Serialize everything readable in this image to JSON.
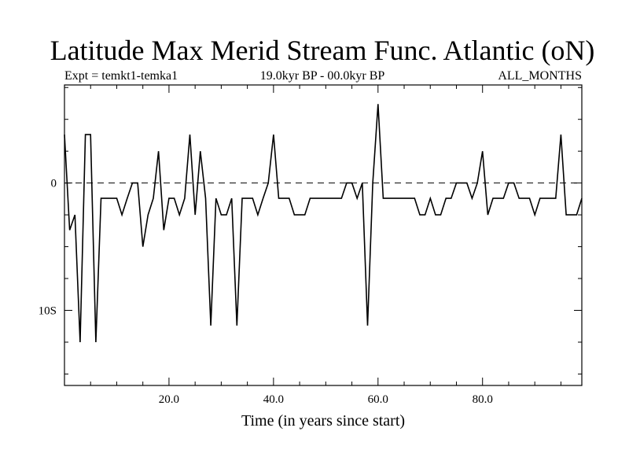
{
  "chart_data": {
    "type": "line",
    "title": "Latitude Max Merid Stream Func. Atlantic (oN)",
    "left_label": "Expt = temkt1-temka1",
    "center_label": "19.0kyr BP - 00.0kyr BP",
    "right_label": "ALL_MONTHS",
    "xlabel": "Time (in years since start)",
    "ylabel": "",
    "xlim": [
      0,
      99
    ],
    "ylim": [
      -15.9,
      7.7
    ],
    "x_ticks": [
      {
        "value": 20,
        "label": "20.0"
      },
      {
        "value": 40,
        "label": "40.0"
      },
      {
        "value": 60,
        "label": "60.0"
      },
      {
        "value": 80,
        "label": "80.0"
      }
    ],
    "y_ticks": [
      {
        "value": 0,
        "label": "0"
      },
      {
        "value": -10,
        "label": "10S"
      }
    ],
    "reference_line": {
      "value": 0,
      "style": "dashed"
    },
    "series": [
      {
        "name": "temkt1-temka1",
        "x": [
          0,
          1,
          2,
          3,
          4,
          5,
          6,
          7,
          8,
          9,
          10,
          11,
          12,
          13,
          14,
          15,
          16,
          17,
          18,
          19,
          20,
          21,
          22,
          23,
          24,
          25,
          26,
          27,
          28,
          29,
          30,
          31,
          32,
          33,
          34,
          35,
          36,
          37,
          38,
          39,
          40,
          41,
          42,
          43,
          44,
          45,
          46,
          47,
          48,
          49,
          50,
          51,
          52,
          53,
          54,
          55,
          56,
          57,
          58,
          59,
          60,
          61,
          62,
          63,
          64,
          65,
          66,
          67,
          68,
          69,
          70,
          71,
          72,
          73,
          74,
          75,
          76,
          77,
          78,
          79,
          80,
          81,
          82,
          83,
          84,
          85,
          86,
          87,
          88,
          89,
          90,
          91,
          92,
          93,
          94,
          95,
          96,
          97,
          98,
          99
        ],
        "values": [
          3.8,
          -3.7,
          -2.5,
          -12.5,
          3.8,
          3.8,
          -12.5,
          -1.2,
          -1.2,
          -1.2,
          -1.2,
          -2.5,
          -1.2,
          0,
          0,
          -5,
          -2.5,
          -1.2,
          2.5,
          -3.7,
          -1.2,
          -1.2,
          -2.5,
          -1.2,
          3.8,
          -2.5,
          2.5,
          -1.2,
          -11.2,
          -1.2,
          -2.5,
          -2.5,
          -1.2,
          -11.2,
          -1.2,
          -1.2,
          -1.2,
          -2.5,
          -1.2,
          0,
          3.8,
          -1.2,
          -1.2,
          -1.2,
          -2.5,
          -2.5,
          -2.5,
          -1.2,
          -1.2,
          -1.2,
          -1.2,
          -1.2,
          -1.2,
          -1.2,
          0,
          0,
          -1.2,
          0,
          -11.2,
          0,
          6.2,
          -1.2,
          -1.2,
          -1.2,
          -1.2,
          -1.2,
          -1.2,
          -1.2,
          -2.5,
          -2.5,
          -1.2,
          -2.5,
          -2.5,
          -1.2,
          -1.2,
          0,
          0,
          0,
          -1.2,
          0,
          2.5,
          -2.5,
          -1.2,
          -1.2,
          -1.2,
          0,
          0,
          -1.2,
          -1.2,
          -1.2,
          -2.5,
          -1.2,
          -1.2,
          -1.2,
          -1.2,
          3.8,
          -2.5,
          -2.5,
          -2.5,
          -1.2
        ]
      }
    ]
  }
}
